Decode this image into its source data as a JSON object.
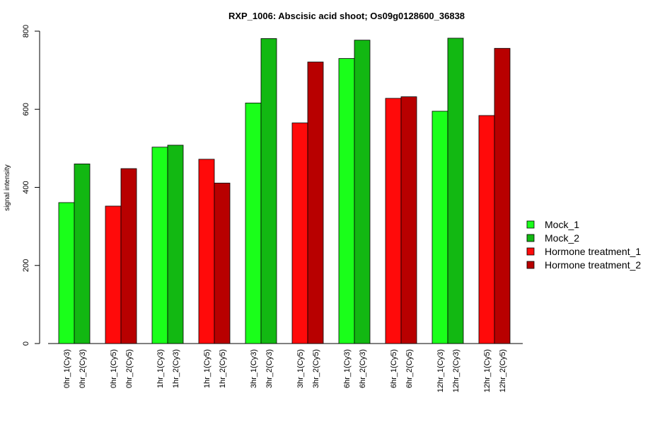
{
  "chart_data": {
    "type": "bar",
    "title": "RXP_1006: Abscisic acid shoot; Os09g0128600_36838",
    "xlabel": "",
    "ylabel": "signal intensity",
    "ylim": [
      0,
      800
    ],
    "yticks": [
      0,
      200,
      400,
      600,
      800
    ],
    "legend_position": "right",
    "grid": false,
    "series": [
      {
        "name": "Mock_1",
        "color": "#1aff1a"
      },
      {
        "name": "Mock_2",
        "color": "#12b812"
      },
      {
        "name": "Hormone treatment_1",
        "color": "#ff0a0a"
      },
      {
        "name": "Hormone treatment_2",
        "color": "#b80000"
      }
    ],
    "groups": [
      {
        "bars": [
          {
            "label": "0hr_1(Cy3)",
            "value": 361,
            "series": 0
          },
          {
            "label": "0hr_2(Cy3)",
            "value": 460,
            "series": 1
          }
        ]
      },
      {
        "bars": [
          {
            "label": "0hr_1(Cy5)",
            "value": 352,
            "series": 2
          },
          {
            "label": "0hr_2(Cy5)",
            "value": 448,
            "series": 3
          }
        ]
      },
      {
        "bars": [
          {
            "label": "1hr_1(Cy3)",
            "value": 503,
            "series": 0
          },
          {
            "label": "1hr_2(Cy3)",
            "value": 508,
            "series": 1
          }
        ]
      },
      {
        "bars": [
          {
            "label": "1hr_1(Cy5)",
            "value": 472,
            "series": 2
          },
          {
            "label": "1hr_2(Cy5)",
            "value": 411,
            "series": 3
          }
        ]
      },
      {
        "bars": [
          {
            "label": "3hr_1(Cy3)",
            "value": 616,
            "series": 0
          },
          {
            "label": "3hr_2(Cy3)",
            "value": 781,
            "series": 1
          }
        ]
      },
      {
        "bars": [
          {
            "label": "3hr_1(Cy5)",
            "value": 565,
            "series": 2
          },
          {
            "label": "3hr_2(Cy5)",
            "value": 721,
            "series": 3
          }
        ]
      },
      {
        "bars": [
          {
            "label": "6hr_1(Cy3)",
            "value": 730,
            "series": 0
          },
          {
            "label": "6hr_2(Cy3)",
            "value": 777,
            "series": 1
          }
        ]
      },
      {
        "bars": [
          {
            "label": "6hr_1(Cy5)",
            "value": 628,
            "series": 2
          },
          {
            "label": "6hr_2(Cy5)",
            "value": 632,
            "series": 3
          }
        ]
      },
      {
        "bars": [
          {
            "label": "12hr_1(Cy3)",
            "value": 595,
            "series": 0
          },
          {
            "label": "12hr_2(Cy3)",
            "value": 782,
            "series": 1
          }
        ]
      },
      {
        "bars": [
          {
            "label": "12hr_1(Cy5)",
            "value": 584,
            "series": 2
          },
          {
            "label": "12hr_2(Cy5)",
            "value": 756,
            "series": 3
          }
        ]
      }
    ]
  }
}
